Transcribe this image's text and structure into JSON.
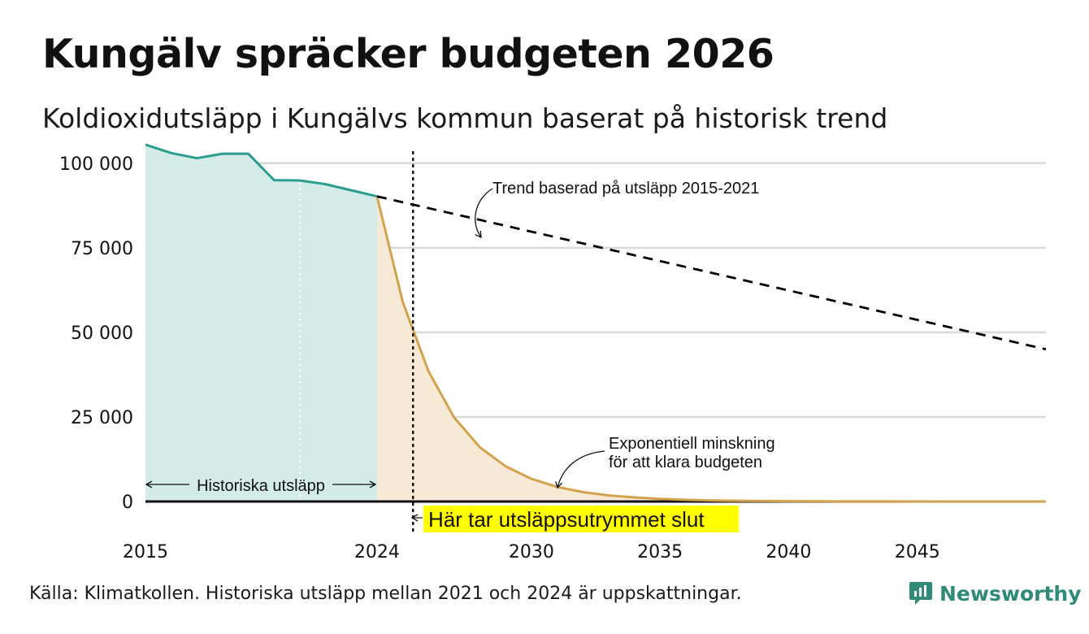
{
  "title": "Kungälv spräcker budgeten 2026",
  "subtitle": "Koldioxidutsläpp i Kungälvs kommun baserat på historisk trend",
  "source": "Källa: Klimatkollen. Historiska utsläpp mellan 2021 och 2024 är uppskattningar.",
  "brand": {
    "name": "Newsworthy",
    "icon": "newsworthy-logo-icon",
    "color": "#2f8a78"
  },
  "colors": {
    "historical_line": "#2a9d8f",
    "historical_fill": "#d3ece8",
    "budget_line": "#d4a24c",
    "budget_fill": "#f6ead6",
    "trend_line": "#000000",
    "highlight": "#ffff00",
    "grid": "#d9d9d9"
  },
  "chart_data": {
    "type": "area",
    "title": "Kungälv spräcker budgeten 2026",
    "subtitle": "Koldioxidutsläpp i Kungälvs kommun baserat på historisk trend",
    "xlim": [
      2015,
      2050
    ],
    "ylim": [
      0,
      105000
    ],
    "grid": true,
    "y_ticks": [
      {
        "value": 0,
        "label": "0"
      },
      {
        "value": 25000,
        "label": "25 000"
      },
      {
        "value": 50000,
        "label": "50 000"
      },
      {
        "value": 75000,
        "label": "75 000"
      },
      {
        "value": 100000,
        "label": "100 000"
      }
    ],
    "x_ticks": [
      {
        "value": 2015,
        "label": "2015"
      },
      {
        "value": 2024,
        "label": "2024"
      },
      {
        "value": 2030,
        "label": "2030"
      },
      {
        "value": 2035,
        "label": "2035"
      },
      {
        "value": 2040,
        "label": "2040"
      },
      {
        "value": 2045,
        "label": "2045"
      }
    ],
    "series": [
      {
        "x": [
          2015,
          2016,
          2017,
          2018,
          2019,
          2020,
          2021,
          2022,
          2023,
          2024
        ],
        "y": [
          105500,
          103000,
          101500,
          102800,
          102800,
          95000,
          94900,
          93800,
          92000,
          90200
        ]
      },
      {
        "x": [
          2024,
          2025,
          2026,
          2027,
          2028,
          2029,
          2030,
          2031,
          2032,
          2033,
          2034,
          2035,
          2036,
          2037,
          2038,
          2039,
          2040,
          2042,
          2044,
          2046,
          2048,
          2050
        ],
        "y": [
          90200,
          59000,
          38500,
          24800,
          16000,
          10400,
          6700,
          4300,
          2800,
          1800,
          1200,
          780,
          500,
          330,
          210,
          140,
          90,
          40,
          20,
          8,
          4,
          2
        ]
      },
      {
        "x": [
          2024,
          2050
        ],
        "y": [
          90200,
          45000
        ]
      }
    ],
    "markers": {
      "dotted_white_x": 2021,
      "dotted_black_x": 2025.4
    },
    "annotations": {
      "trend": "Trend baserad på utsläpp 2015-2021",
      "exp_line1": "Exponentiell minskning",
      "exp_line2": "för att klara budgeten",
      "historical": "Historiska utsläpp",
      "budget_end": "Här tar utsläppsutrymmet slut"
    }
  }
}
